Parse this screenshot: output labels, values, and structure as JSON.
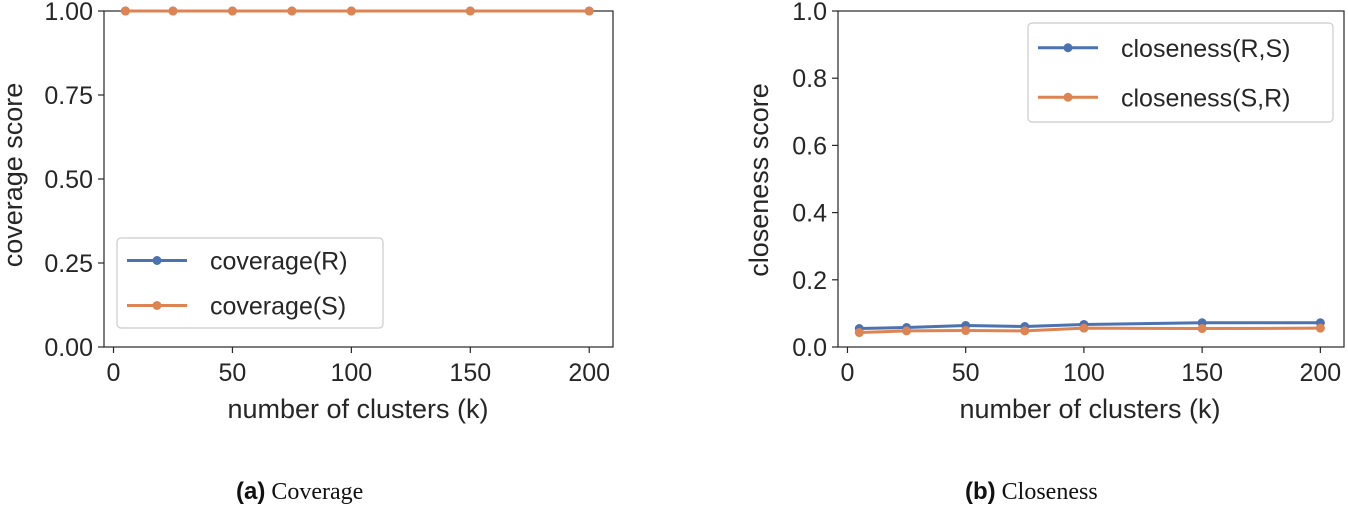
{
  "chart_data": [
    {
      "type": "line",
      "x": [
        5,
        25,
        50,
        75,
        100,
        150,
        200
      ],
      "xlabel": "number of clusters (k)",
      "ylabel": "coverage score",
      "xlim": [
        -4,
        210
      ],
      "ylim": [
        0,
        1.0
      ],
      "xticks": [
        0,
        50,
        100,
        150,
        200
      ],
      "xtick_labels": [
        "0",
        "50",
        "100",
        "150",
        "200"
      ],
      "yticks": [
        0,
        0.25,
        0.5,
        0.75,
        1.0
      ],
      "ytick_labels": [
        "0.00",
        "0.25",
        "0.50",
        "0.75",
        "1.00"
      ],
      "grid": false,
      "legend_position": "lower-left",
      "series": [
        {
          "name": "coverage(R)",
          "color": "#4c72b0",
          "values": [
            1.0,
            1.0,
            1.0,
            1.0,
            1.0,
            1.0,
            1.0
          ]
        },
        {
          "name": "coverage(S)",
          "color": "#dd8452",
          "values": [
            1.0,
            1.0,
            1.0,
            1.0,
            1.0,
            1.0,
            1.0
          ]
        }
      ]
    },
    {
      "type": "line",
      "x": [
        5,
        25,
        50,
        75,
        100,
        150,
        200
      ],
      "xlabel": "number of clusters (k)",
      "ylabel": "closeness score",
      "xlim": [
        -4,
        210
      ],
      "ylim": [
        0,
        1.0
      ],
      "xticks": [
        0,
        50,
        100,
        150,
        200
      ],
      "xtick_labels": [
        "0",
        "50",
        "100",
        "150",
        "200"
      ],
      "yticks": [
        0,
        0.2,
        0.4,
        0.6,
        0.8,
        1.0
      ],
      "ytick_labels": [
        "0.0",
        "0.2",
        "0.4",
        "0.6",
        "0.8",
        "1.0"
      ],
      "grid": false,
      "legend_position": "top-right",
      "series": [
        {
          "name": "closeness(R,S)",
          "color": "#4c72b0",
          "values": [
            0.055,
            0.058,
            0.064,
            0.061,
            0.067,
            0.072,
            0.072
          ]
        },
        {
          "name": "closeness(S,R)",
          "color": "#dd8452",
          "values": [
            0.043,
            0.048,
            0.049,
            0.048,
            0.056,
            0.055,
            0.056
          ]
        }
      ]
    }
  ],
  "captions": [
    {
      "tag": "(a)",
      "text": "Coverage"
    },
    {
      "tag": "(b)",
      "text": "Closeness"
    }
  ]
}
